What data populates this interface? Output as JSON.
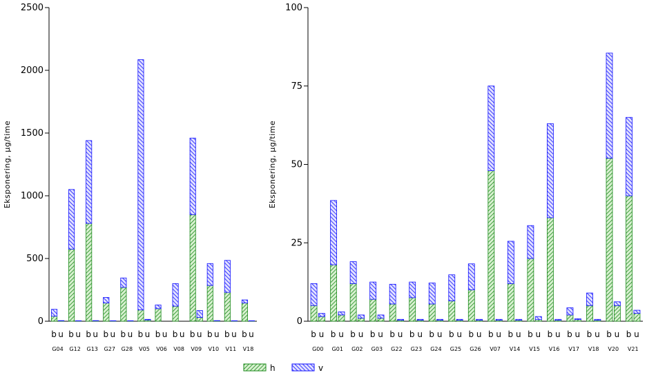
{
  "legend": {
    "h": {
      "label": "h",
      "color": "#1a8a1a",
      "fill": "#d8f0d0"
    },
    "v": {
      "label": "v",
      "color": "#1010ff",
      "fill": "#e2e2ff"
    }
  },
  "chart_data": [
    {
      "type": "bar",
      "stacked": true,
      "ylabel": "Eksponering, μg/time",
      "ylim": [
        0,
        2500
      ],
      "yticks": [
        0,
        500,
        1000,
        1500,
        2000,
        2500
      ],
      "ytick_labels": [
        "0",
        "500",
        "1000",
        "1500",
        "2000",
        "2500"
      ],
      "categories": [
        "G04",
        "G12",
        "G13",
        "G27",
        "G28",
        "V05",
        "V06",
        "V08",
        "V09",
        "V10",
        "V11",
        "V18"
      ],
      "subgroups": [
        "b",
        "u"
      ],
      "series": [
        {
          "name": "h",
          "values": [
            [
              40,
              3
            ],
            [
              575,
              2
            ],
            [
              780,
              3
            ],
            [
              145,
              2
            ],
            [
              270,
              2
            ],
            [
              90,
              10
            ],
            [
              100,
              0
            ],
            [
              120,
              0
            ],
            [
              850,
              30
            ],
            [
              285,
              3
            ],
            [
              230,
              2
            ],
            [
              145,
              2
            ]
          ]
        },
        {
          "name": "v",
          "values": [
            [
              55,
              2
            ],
            [
              475,
              2
            ],
            [
              660,
              2
            ],
            [
              45,
              2
            ],
            [
              75,
              2
            ],
            [
              1995,
              5
            ],
            [
              30,
              0
            ],
            [
              180,
              0
            ],
            [
              610,
              55
            ],
            [
              175,
              2
            ],
            [
              255,
              2
            ],
            [
              25,
              2
            ]
          ]
        }
      ]
    },
    {
      "type": "bar",
      "stacked": true,
      "ylabel": "Eksponering, μg/time",
      "ylim": [
        0,
        100
      ],
      "yticks": [
        0,
        25,
        50,
        75,
        100
      ],
      "ytick_labels": [
        "0",
        "25",
        "50",
        "75",
        "100"
      ],
      "categories": [
        "G00",
        "G01",
        "G02",
        "G03",
        "G22",
        "G23",
        "G24",
        "G25",
        "G26",
        "V07",
        "V14",
        "V15",
        "V16",
        "V17",
        "V18",
        "V20",
        "V21"
      ],
      "subgroups": [
        "b",
        "u"
      ],
      "series": [
        {
          "name": "h",
          "values": [
            [
              5,
              1.5
            ],
            [
              18,
              2
            ],
            [
              12,
              1
            ],
            [
              7,
              1
            ],
            [
              5.5,
              0.3
            ],
            [
              7.5,
              0.3
            ],
            [
              5.5,
              0.3
            ],
            [
              6.5,
              0.3
            ],
            [
              10,
              0.3
            ],
            [
              48,
              0.3
            ],
            [
              12,
              0.3
            ],
            [
              20,
              0.5
            ],
            [
              33,
              0.3
            ],
            [
              2,
              0.5
            ],
            [
              5,
              0.3
            ],
            [
              52,
              5
            ],
            [
              40,
              2.5
            ]
          ]
        },
        {
          "name": "v",
          "values": [
            [
              7,
              1
            ],
            [
              20.5,
              1
            ],
            [
              7,
              1
            ],
            [
              5.5,
              1
            ],
            [
              6.3,
              0.3
            ],
            [
              5,
              0.3
            ],
            [
              6.7,
              0.3
            ],
            [
              8.3,
              0.3
            ],
            [
              8.3,
              0.3
            ],
            [
              27,
              0.3
            ],
            [
              13.5,
              0.3
            ],
            [
              10.5,
              1
            ],
            [
              30,
              0.3
            ],
            [
              2.3,
              0.3
            ],
            [
              4,
              0.3
            ],
            [
              33.5,
              1.2
            ],
            [
              25,
              1
            ]
          ]
        }
      ]
    }
  ]
}
